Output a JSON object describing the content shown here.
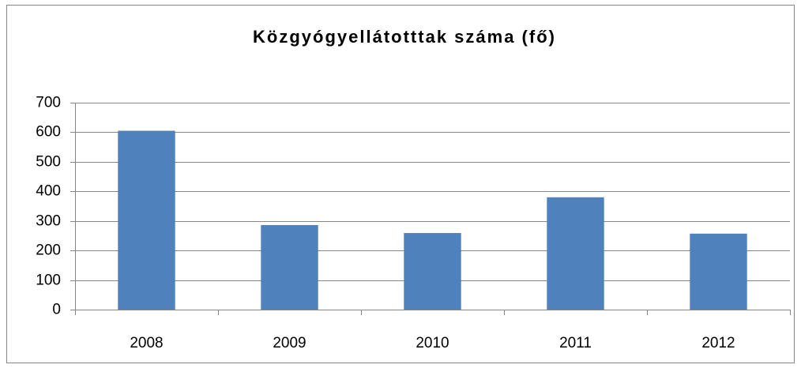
{
  "chart_data": {
    "type": "bar",
    "title": "Közgyógyellátotttak száma (fő)",
    "categories": [
      "2008",
      "2009",
      "2010",
      "2011",
      "2012"
    ],
    "values": [
      605,
      286,
      259,
      380,
      257
    ],
    "color": "#4f81bd",
    "ylim": [
      0,
      700
    ],
    "yticks": [
      0,
      100,
      200,
      300,
      400,
      500,
      600,
      700
    ],
    "grid": true
  }
}
